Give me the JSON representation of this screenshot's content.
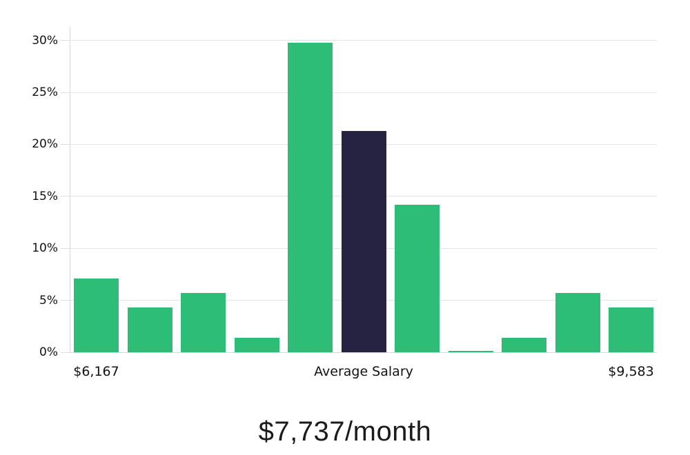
{
  "page": {
    "background": "#ffffff"
  },
  "chart_data": {
    "type": "bar",
    "subtype": "salary-distribution-histogram",
    "title": "$7,737/month",
    "values": [
      7.1,
      4.3,
      5.7,
      1.4,
      29.8,
      21.3,
      14.2,
      0.15,
      1.4,
      5.7,
      4.3
    ],
    "highlighted_bar_index": 5,
    "y_axis": {
      "tick_values": [
        0,
        5,
        10,
        15,
        20,
        25,
        30
      ],
      "tick_labels": [
        "0%",
        "5%",
        "10%",
        "15%",
        "20%",
        "25%",
        "30%"
      ],
      "max": 31.3,
      "grid": true
    },
    "x_axis": {
      "tick_labels": [
        {
          "label": "$6,167",
          "bar_index": 0
        },
        {
          "label": "Average Salary",
          "bar_index": 5
        },
        {
          "label": "$9,583",
          "bar_index": 10
        }
      ]
    },
    "legend": null,
    "colors": {
      "bar": "#2dbd76",
      "highlighted_bar": "#262342",
      "gridline": "#e4e4e4",
      "tick_mark": "#dddddd",
      "axis_line": "#d7d7d7",
      "tick_text": "#121212",
      "title_text": "#1b1b1b",
      "background": "#ffffff"
    }
  }
}
